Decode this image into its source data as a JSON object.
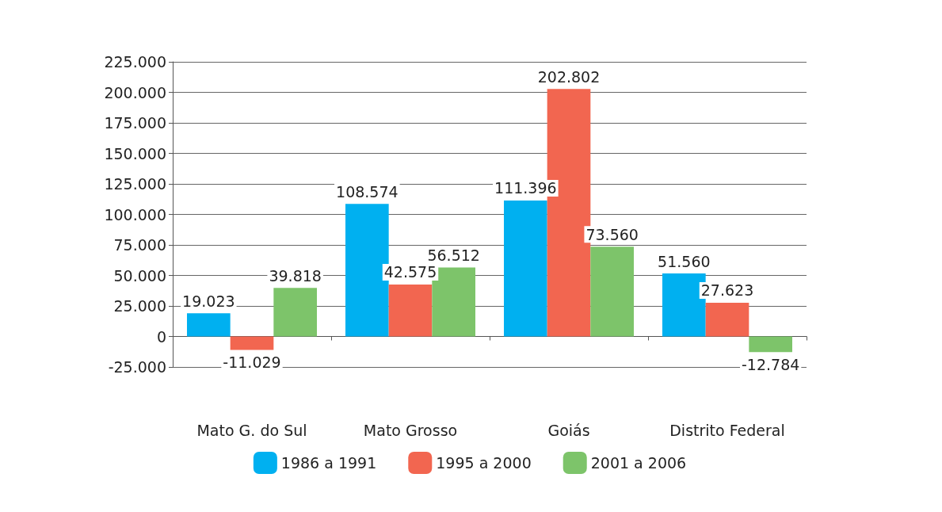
{
  "chart_data": {
    "type": "bar",
    "categories": [
      "Mato G. do Sul",
      "Mato Grosso",
      "Goiás",
      "Distrito Federal"
    ],
    "series": [
      {
        "name": "1986 a 1991",
        "color": "#00b0f0",
        "values": [
          19023,
          108574,
          111396,
          51560
        ],
        "value_labels": [
          "19.023",
          "108.574",
          "111.396",
          "51.560"
        ]
      },
      {
        "name": "1995 a 2000",
        "color": "#f26650",
        "values": [
          -11029,
          42575,
          202802,
          27623
        ],
        "value_labels": [
          "-11.029",
          "42.575",
          "202.802",
          "27.623"
        ]
      },
      {
        "name": "2001 a 2006",
        "color": "#7dc46a",
        "values": [
          39818,
          56512,
          73560,
          -12784
        ],
        "value_labels": [
          "39.818",
          "56.512",
          "73.560",
          "-12.784"
        ]
      }
    ],
    "ylim": [
      -25000,
      225000
    ],
    "yticks": [
      {
        "value": -25000,
        "label": "-25.000"
      },
      {
        "value": 0,
        "label": "0"
      },
      {
        "value": 25000,
        "label": "25.000"
      },
      {
        "value": 50000,
        "label": "50.000"
      },
      {
        "value": 75000,
        "label": "75.000"
      },
      {
        "value": 100000,
        "label": "100.000"
      },
      {
        "value": 125000,
        "label": "125.000"
      },
      {
        "value": 150000,
        "label": "150.000"
      },
      {
        "value": 175000,
        "label": "175.000"
      },
      {
        "value": 200000,
        "label": "200.000"
      },
      {
        "value": 225000,
        "label": "225.000"
      }
    ],
    "grid": "y",
    "legend": "bottom"
  }
}
